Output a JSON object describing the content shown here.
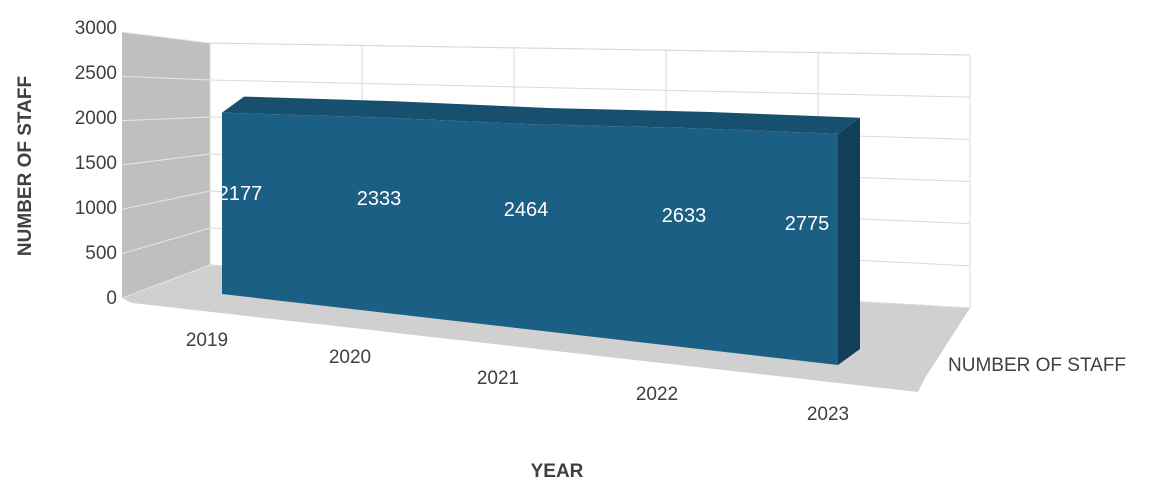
{
  "chart_data": {
    "type": "area",
    "view": "3d",
    "categories": [
      "2019",
      "2020",
      "2021",
      "2022",
      "2023"
    ],
    "series": [
      {
        "name": "NUMBER OF STAFF",
        "values": [
          2177,
          2333,
          2464,
          2633,
          2775
        ]
      }
    ],
    "xlabel": "YEAR",
    "ylabel": "NUMBER OF STAFF",
    "depth_label": "NUMBER OF STAFF",
    "ylim": [
      0,
      3000
    ],
    "yticks": [
      "0",
      "500",
      "1000",
      "1500",
      "2000",
      "2500",
      "3000"
    ],
    "grid": true,
    "data_labels": true,
    "colors": {
      "area_front": "#1c5f84",
      "area_top": "#17506f",
      "area_side": "#123f58",
      "grid": "#d9d9d9",
      "back_wall": "#ffffff",
      "side_wall": "#bfbfbf",
      "floor": "#d0d0d0"
    }
  }
}
